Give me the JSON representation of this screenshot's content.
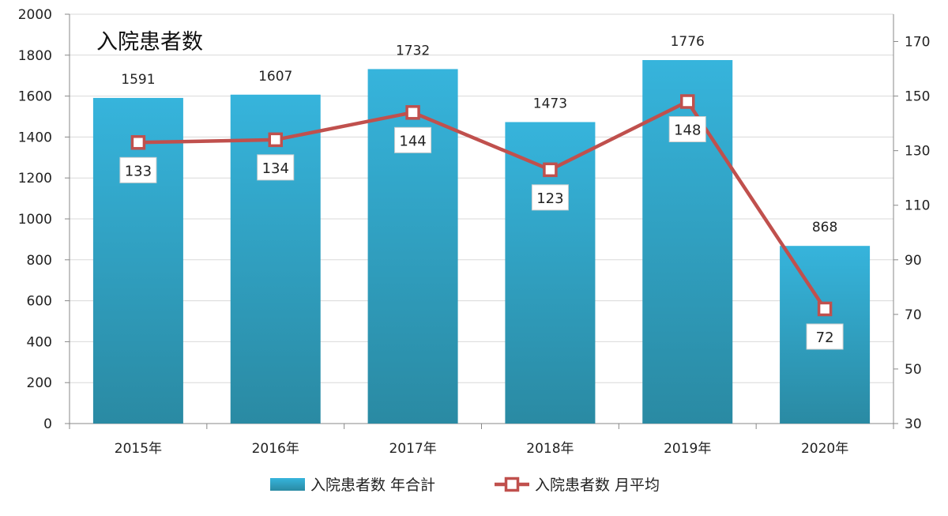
{
  "chart_data": {
    "type": "bar",
    "title": "入院患者数",
    "categories": [
      "2015年",
      "2016年",
      "2017年",
      "2018年",
      "2019年",
      "2020年"
    ],
    "series": [
      {
        "name": "入院患者数 年合計",
        "type": "bar",
        "axis": "left",
        "values": [
          1591,
          1607,
          1732,
          1473,
          1776,
          868
        ],
        "color": "#2fa6c8"
      },
      {
        "name": "入院患者数 月平均",
        "type": "line",
        "axis": "right",
        "values": [
          133,
          134,
          144,
          123,
          148,
          72
        ],
        "color": "#c0504d"
      }
    ],
    "y_left": {
      "min": 0,
      "max": 2000,
      "ticks": [
        0,
        200,
        400,
        600,
        800,
        1000,
        1200,
        1400,
        1600,
        1800,
        2000
      ]
    },
    "y_right": {
      "min": 30,
      "max": 180,
      "ticks": [
        30,
        50,
        70,
        90,
        110,
        130,
        150,
        170
      ]
    },
    "grid": true,
    "legend_position": "bottom"
  }
}
